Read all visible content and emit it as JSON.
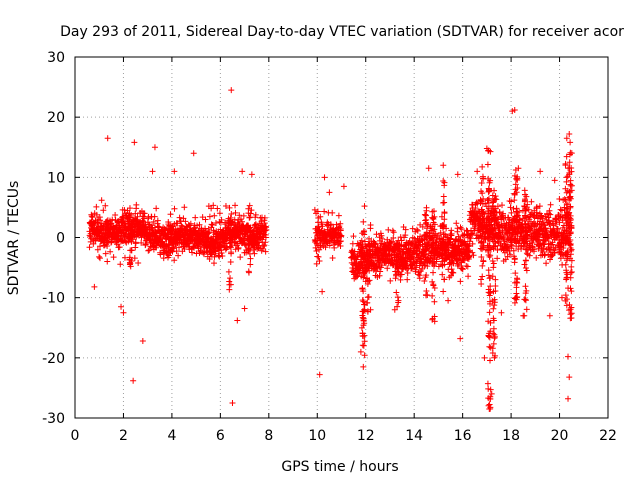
{
  "chart_data": {
    "type": "scatter",
    "title": "Day 293 of 2011, Sidereal Day-to-day VTEC variation (SDTVAR) for receiver acor",
    "xlabel": "GPS time / hours",
    "ylabel": "SDTVAR / TECUs",
    "xlim": [
      0,
      22
    ],
    "ylim": [
      -30,
      30
    ],
    "xticks": [
      0,
      2,
      4,
      6,
      8,
      10,
      12,
      14,
      16,
      18,
      20,
      22
    ],
    "yticks": [
      -30,
      -20,
      -10,
      0,
      10,
      20,
      30
    ],
    "grid": true,
    "marker": "+",
    "color": "#ff0000",
    "segments": [
      {
        "x0": 0.6,
        "x1": 7.9,
        "center": 0.5,
        "spread": 1.2,
        "density": 160
      },
      {
        "x0": 9.9,
        "x1": 11.0,
        "center": 0.0,
        "spread": 1.0,
        "density": 120
      },
      {
        "x0": 11.4,
        "x1": 16.3,
        "center": -2.5,
        "spread": 1.5,
        "density": 160
      },
      {
        "x0": 16.3,
        "x1": 20.5,
        "center": 1.5,
        "spread": 2.0,
        "density": 160
      }
    ],
    "outliers": [
      {
        "x": 6.45,
        "y": 24.5
      },
      {
        "x": 6.5,
        "y": -27.5
      },
      {
        "x": 1.35,
        "y": 16.5
      },
      {
        "x": 2.45,
        "y": 15.8
      },
      {
        "x": 3.3,
        "y": 15.0
      },
      {
        "x": 4.9,
        "y": 14.0
      },
      {
        "x": 2.4,
        "y": -23.8
      },
      {
        "x": 2.8,
        "y": -17.2
      },
      {
        "x": 6.7,
        "y": -13.8
      },
      {
        "x": 7.0,
        "y": -11.8
      },
      {
        "x": 1.9,
        "y": -11.5
      },
      {
        "x": 2.0,
        "y": -12.5
      },
      {
        "x": 4.1,
        "y": 11.0
      },
      {
        "x": 6.9,
        "y": 11.0
      },
      {
        "x": 7.3,
        "y": 10.5
      },
      {
        "x": 0.8,
        "y": -8.2
      },
      {
        "x": 1.1,
        "y": 6.2
      },
      {
        "x": 3.2,
        "y": 11.0
      },
      {
        "x": 10.1,
        "y": -22.8
      },
      {
        "x": 10.2,
        "y": -9.0
      },
      {
        "x": 10.3,
        "y": 10.0
      },
      {
        "x": 10.5,
        "y": 7.5
      },
      {
        "x": 11.1,
        "y": 8.5
      },
      {
        "x": 11.9,
        "y": -21.5
      },
      {
        "x": 11.8,
        "y": -19.0
      },
      {
        "x": 12.2,
        "y": -12.0
      },
      {
        "x": 13.2,
        "y": -12.0
      },
      {
        "x": 14.6,
        "y": 11.5
      },
      {
        "x": 15.2,
        "y": 12.0
      },
      {
        "x": 15.8,
        "y": 10.5
      },
      {
        "x": 15.9,
        "y": -16.8
      },
      {
        "x": 15.4,
        "y": -10.5
      },
      {
        "x": 16.6,
        "y": 11.0
      },
      {
        "x": 17.0,
        "y": 14.8
      },
      {
        "x": 17.1,
        "y": -28.5
      },
      {
        "x": 17.2,
        "y": -26.0
      },
      {
        "x": 16.9,
        "y": -20.0
      },
      {
        "x": 18.05,
        "y": 21.0
      },
      {
        "x": 18.15,
        "y": 21.2
      },
      {
        "x": 18.3,
        "y": 11.5
      },
      {
        "x": 19.2,
        "y": 11.0
      },
      {
        "x": 19.6,
        "y": -13.0
      },
      {
        "x": 19.8,
        "y": 9.5
      },
      {
        "x": 20.3,
        "y": 16.5
      },
      {
        "x": 20.4,
        "y": 17.2
      },
      {
        "x": 20.35,
        "y": -19.8
      },
      {
        "x": 20.4,
        "y": -23.2
      },
      {
        "x": 20.35,
        "y": -26.8
      },
      {
        "x": 20.1,
        "y": -10.0
      },
      {
        "x": 18.5,
        "y": -13.0
      },
      {
        "x": 17.6,
        "y": -12.5
      }
    ],
    "spikes": [
      {
        "x": 11.9,
        "ymin": -21.0,
        "ymax": 5.5
      },
      {
        "x": 12.1,
        "ymin": -12.5,
        "ymax": 0.0
      },
      {
        "x": 13.3,
        "ymin": -12.0,
        "ymax": -1.0
      },
      {
        "x": 14.5,
        "ymin": -10.0,
        "ymax": 5.0
      },
      {
        "x": 14.8,
        "ymin": -14.0,
        "ymax": 6.0
      },
      {
        "x": 15.2,
        "ymin": -10.0,
        "ymax": 10.0
      },
      {
        "x": 16.8,
        "ymin": -8.0,
        "ymax": 12.0
      },
      {
        "x": 17.1,
        "ymin": -28.5,
        "ymax": 14.8
      },
      {
        "x": 17.3,
        "ymin": -20.0,
        "ymax": 8.0
      },
      {
        "x": 18.2,
        "ymin": -12.5,
        "ymax": 12.0
      },
      {
        "x": 18.6,
        "ymin": -13.0,
        "ymax": 8.0
      },
      {
        "x": 20.3,
        "ymin": -12.0,
        "ymax": 14.0
      },
      {
        "x": 20.45,
        "ymin": -14.0,
        "ymax": 16.0
      },
      {
        "x": 2.3,
        "ymin": -5.0,
        "ymax": 4.0
      },
      {
        "x": 6.4,
        "ymin": -9.0,
        "ymax": 5.0
      },
      {
        "x": 7.2,
        "ymin": -6.0,
        "ymax": 6.0
      }
    ]
  }
}
